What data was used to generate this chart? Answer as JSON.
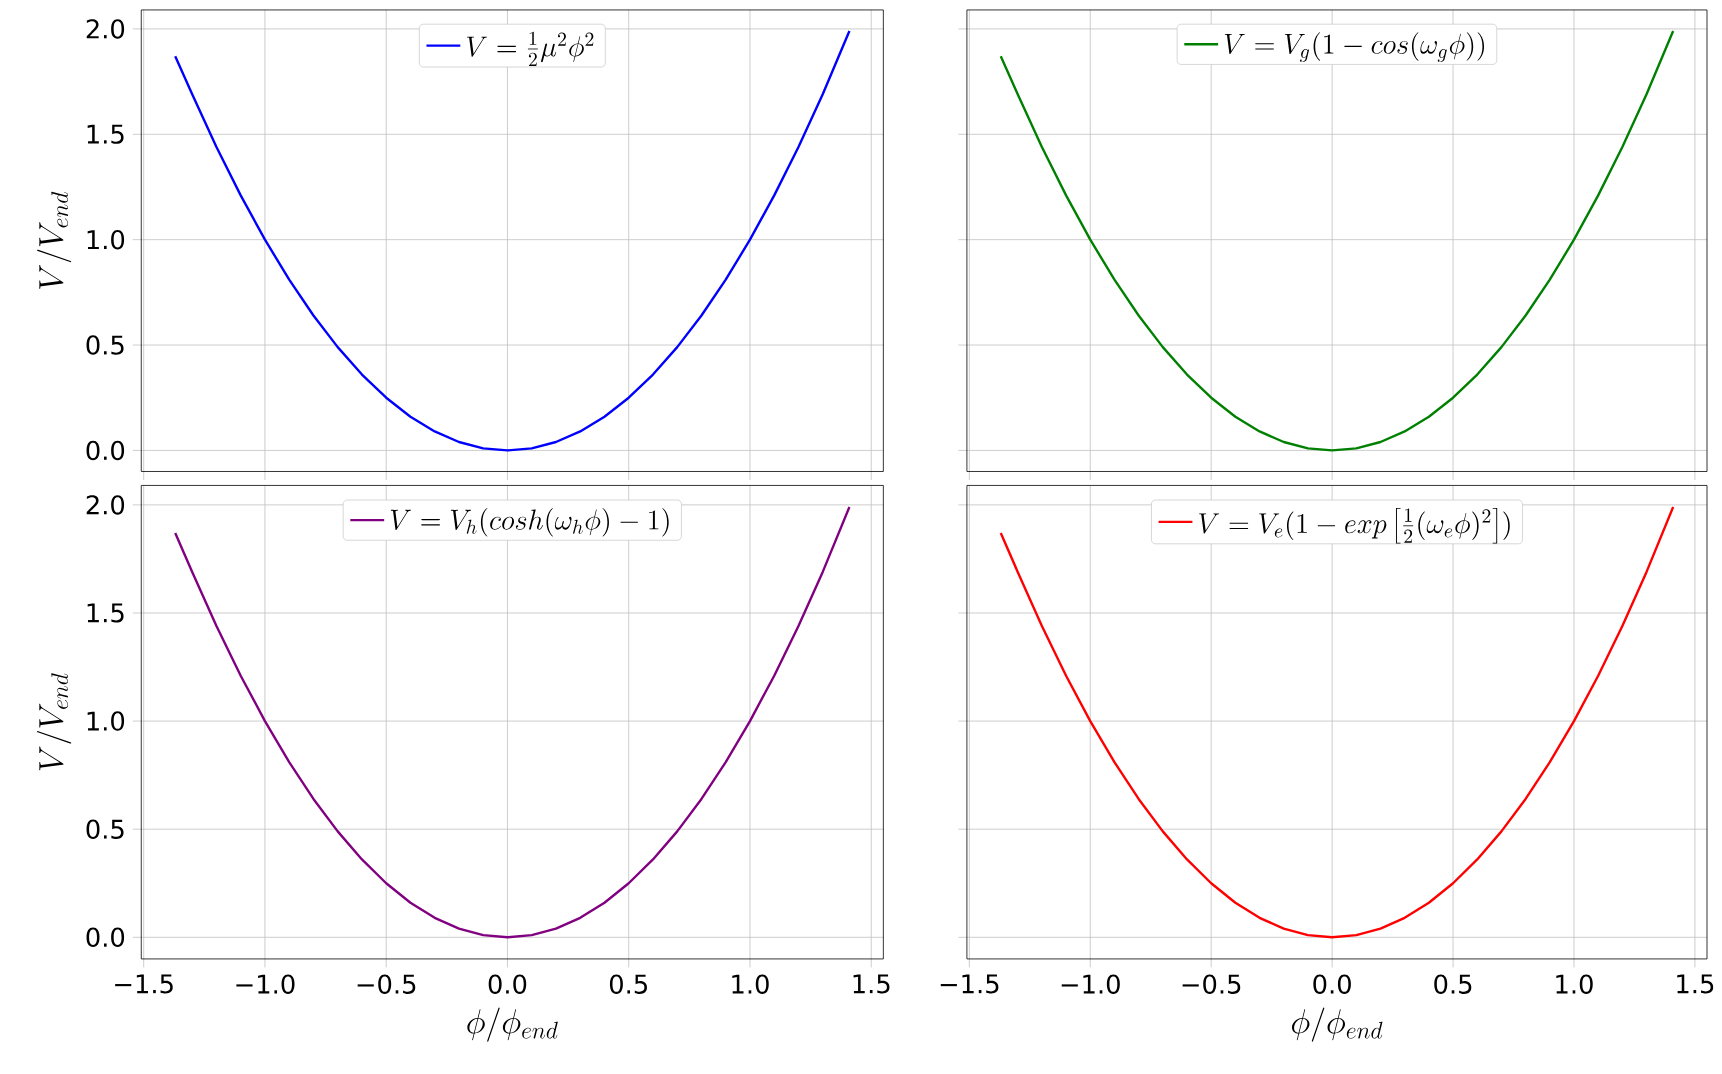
{
  "chart_data": [
    {
      "type": "line",
      "ylabel": "V/V_{end}",
      "tick_labels": "y",
      "grid": true,
      "legend": "top",
      "xlim": [
        -1.51,
        1.55
      ],
      "ylim": [
        -0.1,
        2.09
      ],
      "xticks": [
        -1.5,
        -1.0,
        -0.5,
        0,
        0.5,
        1.0,
        1.5
      ],
      "yticks": [
        {
          "value": 0,
          "label": "0.0"
        },
        {
          "value": 0.5,
          "label": "0.5"
        },
        {
          "value": 1.0,
          "label": "1.0"
        },
        {
          "value": 1.5,
          "label": "1.5"
        },
        {
          "value": 2.0,
          "label": "2.0"
        }
      ],
      "x": [
        -1.37,
        -1.3,
        -1.2,
        -1.1,
        -1.0,
        -0.9,
        -0.8,
        -0.7,
        -0.6,
        -0.5,
        -0.4,
        -0.3,
        -0.2,
        -0.1,
        0,
        0.1,
        0.2,
        0.3,
        0.4,
        0.5,
        0.6,
        0.7,
        0.8,
        0.9,
        1.0,
        1.1,
        1.2,
        1.3,
        1.41
      ],
      "series": [
        {
          "name": "V=\\frac{1}{2}\\mu^2\\phi^2",
          "color": "#0000ff",
          "values": [
            1.87,
            1.69,
            1.44,
            1.21,
            1.0,
            0.81,
            0.64,
            0.49,
            0.36,
            0.25,
            0.16,
            0.09,
            0.04,
            0.01,
            0,
            0.01,
            0.04,
            0.09,
            0.16,
            0.25,
            0.36,
            0.49,
            0.64,
            0.81,
            1.0,
            1.21,
            1.44,
            1.69,
            1.99
          ]
        }
      ]
    },
    {
      "type": "line",
      "tick_labels": false,
      "grid": true,
      "legend": "top",
      "xlim": [
        -1.51,
        1.55
      ],
      "ylim": [
        -0.1,
        2.09
      ],
      "xticks": [
        -1.5,
        -1.0,
        -0.5,
        0,
        0.5,
        1.0,
        1.5
      ],
      "yticks": [
        0,
        0.5,
        1.0,
        1.5,
        2.0
      ],
      "x": [
        -1.37,
        -1.3,
        -1.2,
        -1.1,
        -1.0,
        -0.9,
        -0.8,
        -0.7,
        -0.6,
        -0.5,
        -0.4,
        -0.3,
        -0.2,
        -0.1,
        0,
        0.1,
        0.2,
        0.3,
        0.4,
        0.5,
        0.6,
        0.7,
        0.8,
        0.9,
        1.0,
        1.1,
        1.2,
        1.3,
        1.41
      ],
      "series": [
        {
          "name": "V=V_g(1-cos(\\omega_g\\phi))",
          "color": "#008000",
          "values": [
            1.87,
            1.69,
            1.44,
            1.21,
            1.0,
            0.81,
            0.64,
            0.49,
            0.36,
            0.25,
            0.16,
            0.09,
            0.04,
            0.01,
            0,
            0.01,
            0.04,
            0.09,
            0.16,
            0.25,
            0.36,
            0.49,
            0.64,
            0.81,
            1.0,
            1.21,
            1.44,
            1.69,
            1.99
          ]
        }
      ]
    },
    {
      "type": "line",
      "xlabel": "\\phi/\\phi_{end}",
      "ylabel": "V/V_{end}",
      "grid": true,
      "legend": "top",
      "xlim": [
        -1.51,
        1.55
      ],
      "ylim": [
        -0.1,
        2.09
      ],
      "xticks": [
        {
          "value": -1.5,
          "label": "−1.5"
        },
        {
          "value": -1.0,
          "label": "−1.0"
        },
        {
          "value": -0.5,
          "label": "−0.5"
        },
        {
          "value": 0,
          "label": "0.0"
        },
        {
          "value": 0.5,
          "label": "0.5"
        },
        {
          "value": 1.0,
          "label": "1.0"
        },
        {
          "value": 1.5,
          "label": "1.5"
        }
      ],
      "yticks": [
        {
          "value": 0,
          "label": "0.0"
        },
        {
          "value": 0.5,
          "label": "0.5"
        },
        {
          "value": 1.0,
          "label": "1.0"
        },
        {
          "value": 1.5,
          "label": "1.5"
        },
        {
          "value": 2.0,
          "label": "2.0"
        }
      ],
      "x": [
        -1.37,
        -1.3,
        -1.2,
        -1.1,
        -1.0,
        -0.9,
        -0.8,
        -0.7,
        -0.6,
        -0.5,
        -0.4,
        -0.3,
        -0.2,
        -0.1,
        0,
        0.1,
        0.2,
        0.3,
        0.4,
        0.5,
        0.6,
        0.7,
        0.8,
        0.9,
        1.0,
        1.1,
        1.2,
        1.3,
        1.41
      ],
      "series": [
        {
          "name": "V=V_h(cosh(\\omega_h\\phi)-1)",
          "color": "#800080",
          "values": [
            1.87,
            1.69,
            1.44,
            1.21,
            1.0,
            0.81,
            0.64,
            0.49,
            0.36,
            0.25,
            0.16,
            0.09,
            0.04,
            0.01,
            0,
            0.01,
            0.04,
            0.09,
            0.16,
            0.25,
            0.36,
            0.49,
            0.64,
            0.81,
            1.0,
            1.21,
            1.44,
            1.69,
            1.99
          ]
        }
      ]
    },
    {
      "type": "line",
      "xlabel": "\\phi/\\phi_{end}",
      "tick_labels": "x",
      "grid": true,
      "legend": "top",
      "xlim": [
        -1.51,
        1.55
      ],
      "ylim": [
        -0.1,
        2.09
      ],
      "xticks": [
        {
          "value": -1.5,
          "label": "−1.5"
        },
        {
          "value": -1.0,
          "label": "−1.0"
        },
        {
          "value": -0.5,
          "label": "−0.5"
        },
        {
          "value": 0,
          "label": "0.0"
        },
        {
          "value": 0.5,
          "label": "0.5"
        },
        {
          "value": 1.0,
          "label": "1.0"
        },
        {
          "value": 1.5,
          "label": "1.5"
        }
      ],
      "yticks": [
        0,
        0.5,
        1.0,
        1.5,
        2.0
      ],
      "x": [
        -1.37,
        -1.3,
        -1.2,
        -1.1,
        -1.0,
        -0.9,
        -0.8,
        -0.7,
        -0.6,
        -0.5,
        -0.4,
        -0.3,
        -0.2,
        -0.1,
        0,
        0.1,
        0.2,
        0.3,
        0.4,
        0.5,
        0.6,
        0.7,
        0.8,
        0.9,
        1.0,
        1.1,
        1.2,
        1.3,
        1.41
      ],
      "series": [
        {
          "name": "V=V_e(1-exp\\left[\\frac{1}{2}(\\omega_e\\phi)^2\\right])",
          "color": "#ff0000",
          "values": [
            1.87,
            1.69,
            1.44,
            1.21,
            1.0,
            0.81,
            0.64,
            0.49,
            0.36,
            0.25,
            0.16,
            0.09,
            0.04,
            0.01,
            0,
            0.01,
            0.04,
            0.09,
            0.16,
            0.25,
            0.36,
            0.49,
            0.64,
            0.81,
            1.0,
            1.21,
            1.44,
            1.69,
            1.99
          ]
        }
      ]
    }
  ]
}
